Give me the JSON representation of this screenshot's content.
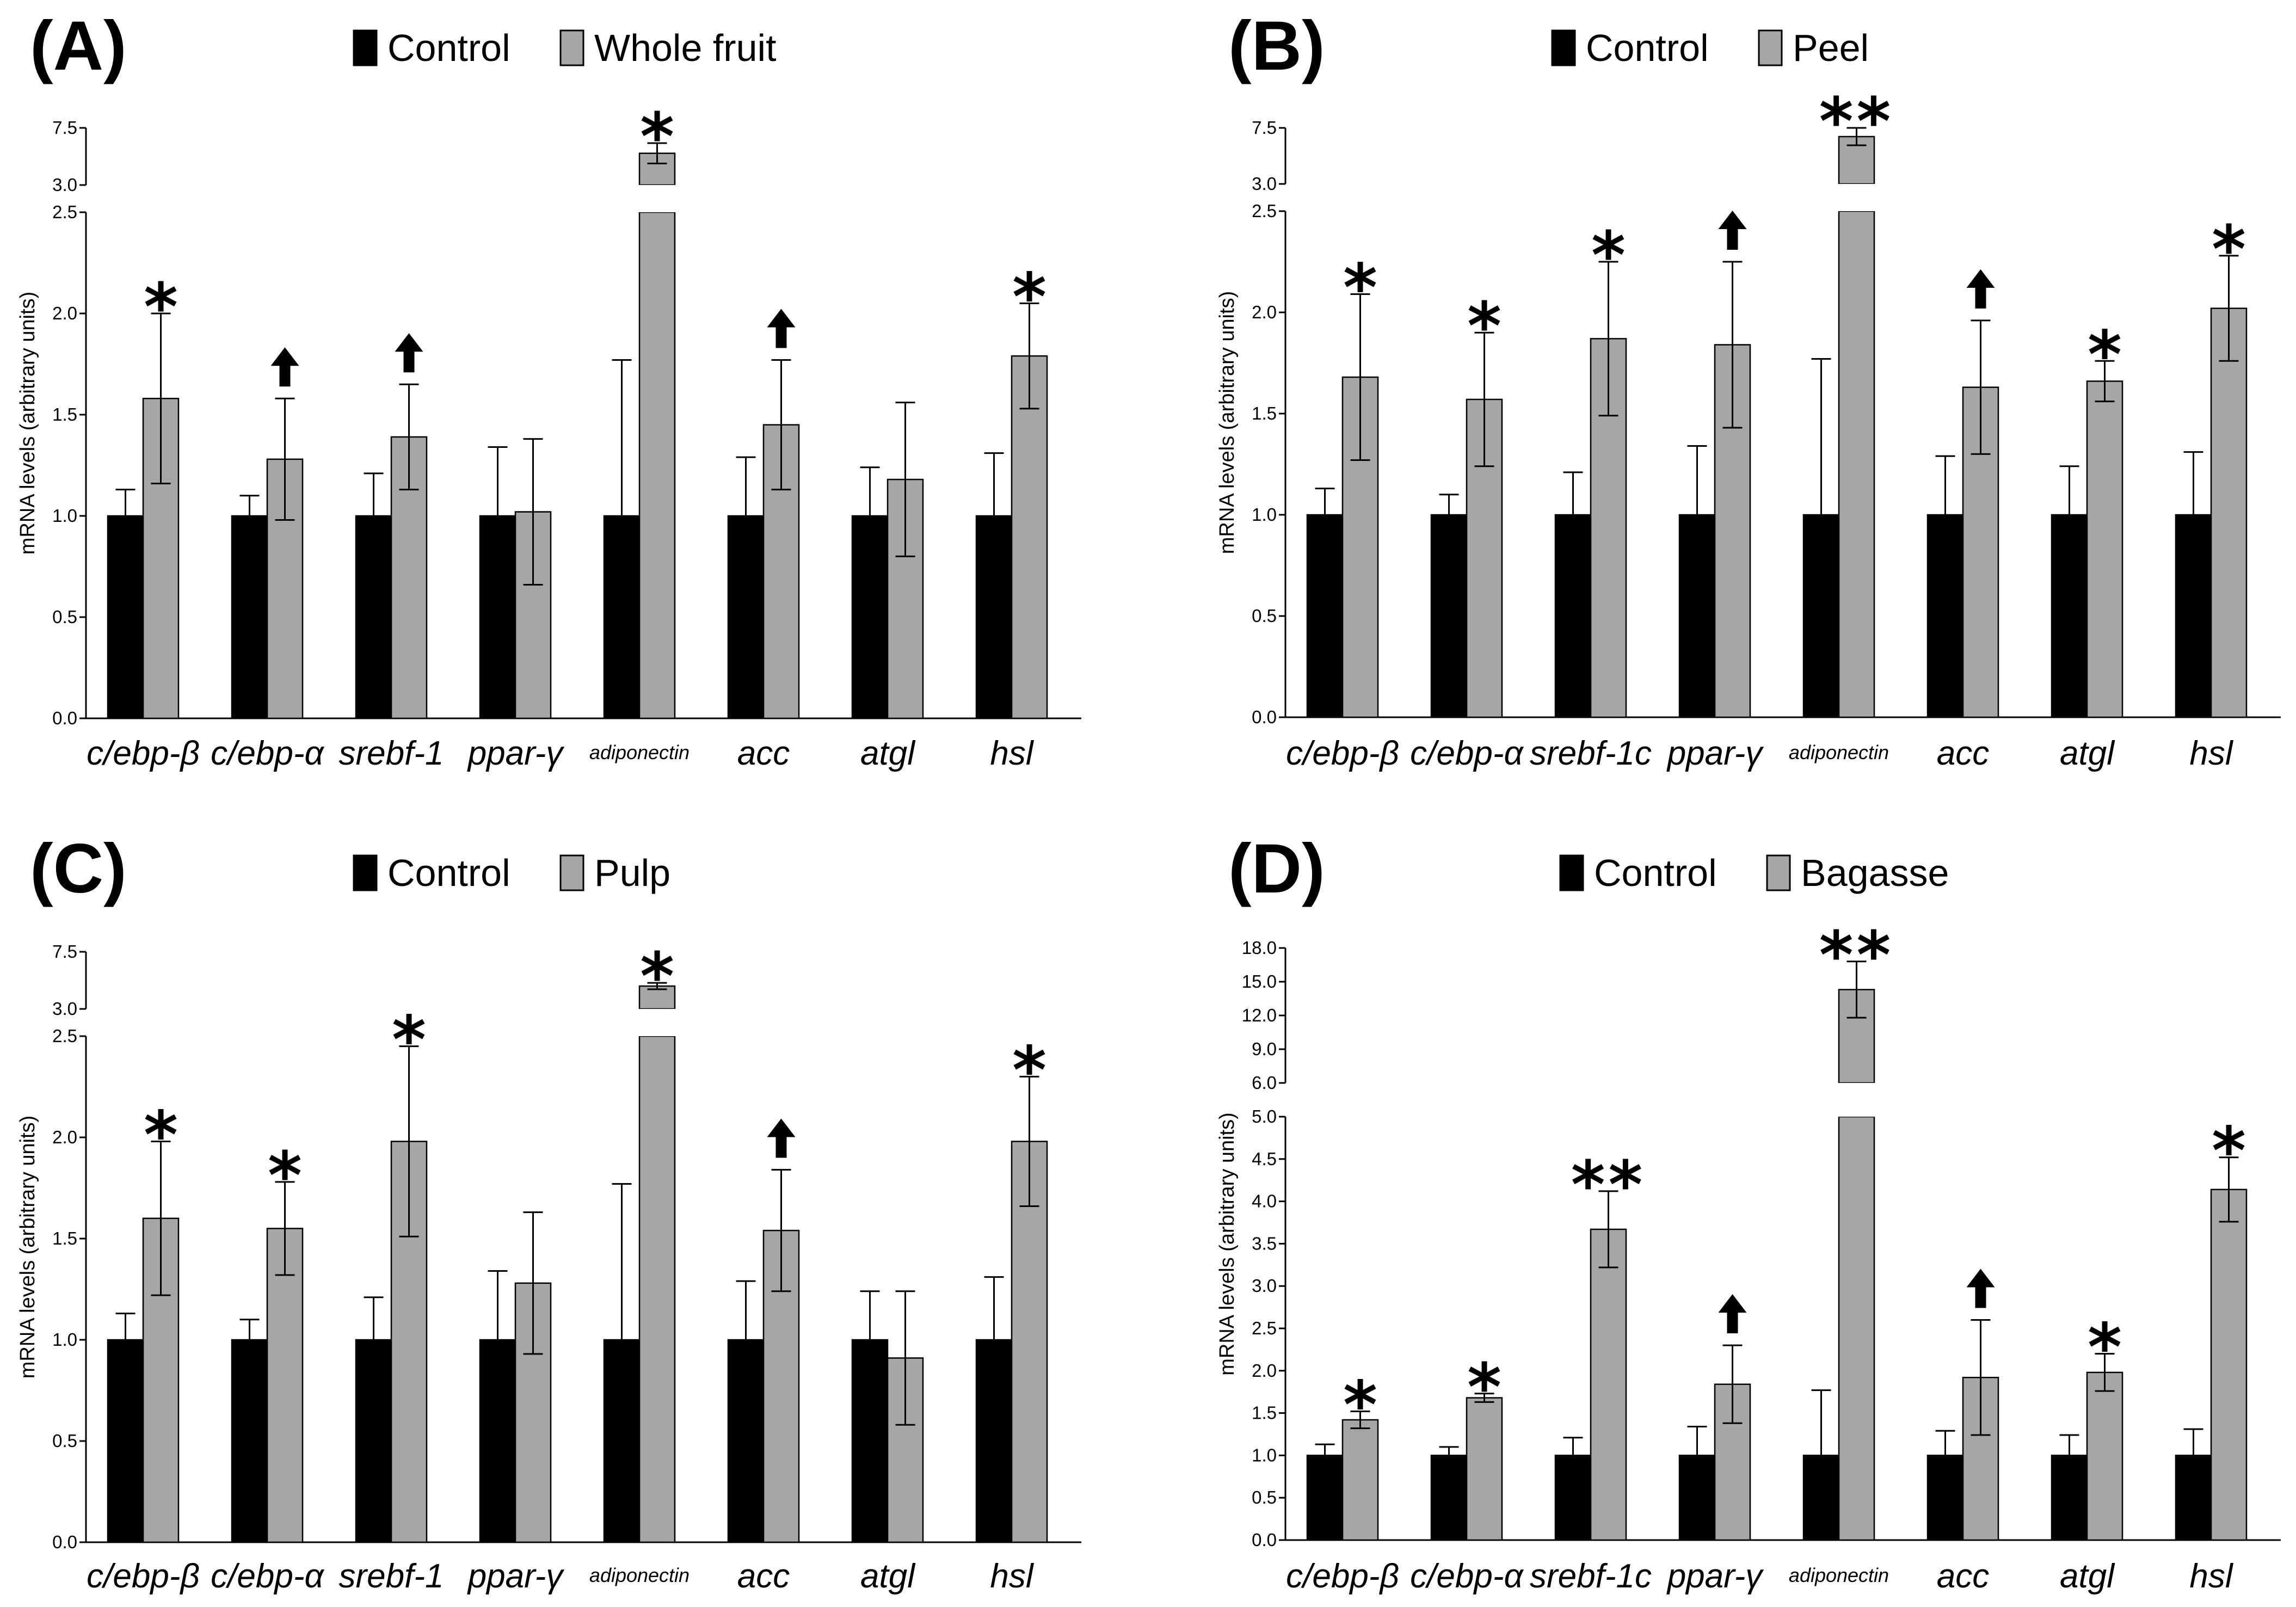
{
  "colors": {
    "control": "#000000",
    "treatment": "#a6a6a6",
    "axis": "#000000"
  },
  "chart_data": [
    {
      "type": "bar",
      "panel": "(A)",
      "ylabel": "mRNA levels (arbitrary units)",
      "categories": [
        "c/ebp-β",
        "c/ebp-α",
        "srebf-1",
        "ppar-γ",
        "adiponectin",
        "acc",
        "atgl",
        "hsl"
      ],
      "series": [
        {
          "name": "Control",
          "values": [
            1.0,
            1.0,
            1.0,
            1.0,
            1.0,
            1.0,
            1.0,
            1.0
          ],
          "errors": [
            0.13,
            0.1,
            0.21,
            0.34,
            0.77,
            0.29,
            0.24,
            0.31
          ]
        },
        {
          "name": "Whole fruit",
          "values": [
            1.58,
            1.28,
            1.39,
            1.02,
            5.5,
            1.45,
            1.18,
            1.79
          ],
          "errors": [
            0.42,
            0.3,
            0.26,
            0.36,
            0.8,
            0.32,
            0.38,
            0.26
          ]
        }
      ],
      "annotations": [
        "*",
        "↑",
        "↑",
        "",
        "*",
        "↑",
        "",
        "*"
      ],
      "axis_breaks": [
        {
          "ylim": [
            0,
            2.5
          ],
          "ticks": [
            "0.0",
            "0.5",
            "1.0",
            "1.5",
            "2.0",
            "2.5"
          ]
        },
        {
          "ylim": [
            3.0,
            7.5
          ],
          "ticks": [
            "3.0",
            "7.5"
          ]
        }
      ]
    },
    {
      "type": "bar",
      "panel": "(B)",
      "ylabel": "mRNA levels (arbitrary units)",
      "categories": [
        "c/ebp-β",
        "c/ebp-α",
        "srebf-1c",
        "ppar-γ",
        "adiponectin",
        "acc",
        "atgl",
        "hsl"
      ],
      "series": [
        {
          "name": "Control",
          "values": [
            1.0,
            1.0,
            1.0,
            1.0,
            1.0,
            1.0,
            1.0,
            1.0
          ],
          "errors": [
            0.13,
            0.1,
            0.21,
            0.34,
            0.77,
            0.29,
            0.24,
            0.31
          ]
        },
        {
          "name": "Peel",
          "values": [
            1.68,
            1.57,
            1.87,
            1.84,
            6.8,
            1.63,
            1.66,
            2.02
          ],
          "errors": [
            0.41,
            0.33,
            0.38,
            0.41,
            0.7,
            0.33,
            0.1,
            0.26
          ]
        }
      ],
      "annotations": [
        "*",
        "*",
        "*",
        "↑",
        "**",
        "↑",
        "*",
        "*"
      ],
      "axis_breaks": [
        {
          "ylim": [
            0,
            2.5
          ],
          "ticks": [
            "0.0",
            "0.5",
            "1.0",
            "1.5",
            "2.0",
            "2.5"
          ]
        },
        {
          "ylim": [
            3.0,
            7.5
          ],
          "ticks": [
            "3.0",
            "7.5"
          ]
        }
      ]
    },
    {
      "type": "bar",
      "panel": "(C)",
      "ylabel": "mRNA levels (arbitrary units)",
      "categories": [
        "c/ebp-β",
        "c/ebp-α",
        "srebf-1",
        "ppar-γ",
        "adiponectin",
        "acc",
        "atgl",
        "hsl"
      ],
      "series": [
        {
          "name": "Control",
          "values": [
            1.0,
            1.0,
            1.0,
            1.0,
            1.0,
            1.0,
            1.0,
            1.0
          ],
          "errors": [
            0.13,
            0.1,
            0.21,
            0.34,
            0.77,
            0.29,
            0.24,
            0.31
          ]
        },
        {
          "name": "Pulp",
          "values": [
            1.6,
            1.55,
            1.98,
            1.28,
            4.8,
            1.54,
            0.91,
            1.98
          ],
          "errors": [
            0.38,
            0.23,
            0.47,
            0.35,
            0.25,
            0.3,
            0.33,
            0.32
          ]
        }
      ],
      "annotations": [
        "*",
        "*",
        "*",
        "",
        "*",
        "↑",
        "",
        "*"
      ],
      "axis_breaks": [
        {
          "ylim": [
            0,
            2.5
          ],
          "ticks": [
            "0.0",
            "0.5",
            "1.0",
            "1.5",
            "2.0",
            "2.5"
          ]
        },
        {
          "ylim": [
            3.0,
            7.5
          ],
          "ticks": [
            "3.0",
            "7.5"
          ]
        }
      ]
    },
    {
      "type": "bar",
      "panel": "(D)",
      "ylabel": "mRNA levels (arbitrary units)",
      "categories": [
        "c/ebp-β",
        "c/ebp-α",
        "srebf-1c",
        "ppar-γ",
        "adiponectin",
        "acc",
        "atgl",
        "hsl"
      ],
      "series": [
        {
          "name": "Control",
          "values": [
            1.0,
            1.0,
            1.0,
            1.0,
            1.0,
            1.0,
            1.0,
            1.0
          ],
          "errors": [
            0.13,
            0.1,
            0.21,
            0.34,
            0.77,
            0.29,
            0.24,
            0.31
          ]
        },
        {
          "name": "Bagasse",
          "values": [
            1.42,
            1.68,
            3.67,
            1.84,
            14.3,
            1.92,
            1.98,
            4.14
          ],
          "errors": [
            0.1,
            0.05,
            0.45,
            0.46,
            2.5,
            0.68,
            0.22,
            0.38
          ]
        }
      ],
      "annotations": [
        "*",
        "*",
        "**",
        "↑",
        "**",
        "↑",
        "*",
        "*"
      ],
      "axis_breaks": [
        {
          "ylim": [
            0,
            5.0
          ],
          "ticks": [
            "0.0",
            "0.5",
            "1.0",
            "1.5",
            "2.0",
            "2.5",
            "3.0",
            "3.5",
            "4.0",
            "4.5",
            "5.0"
          ]
        },
        {
          "ylim": [
            6.0,
            18.0
          ],
          "ticks": [
            "6.0",
            "9.0",
            "12.0",
            "15.0",
            "18.0"
          ]
        }
      ]
    }
  ]
}
